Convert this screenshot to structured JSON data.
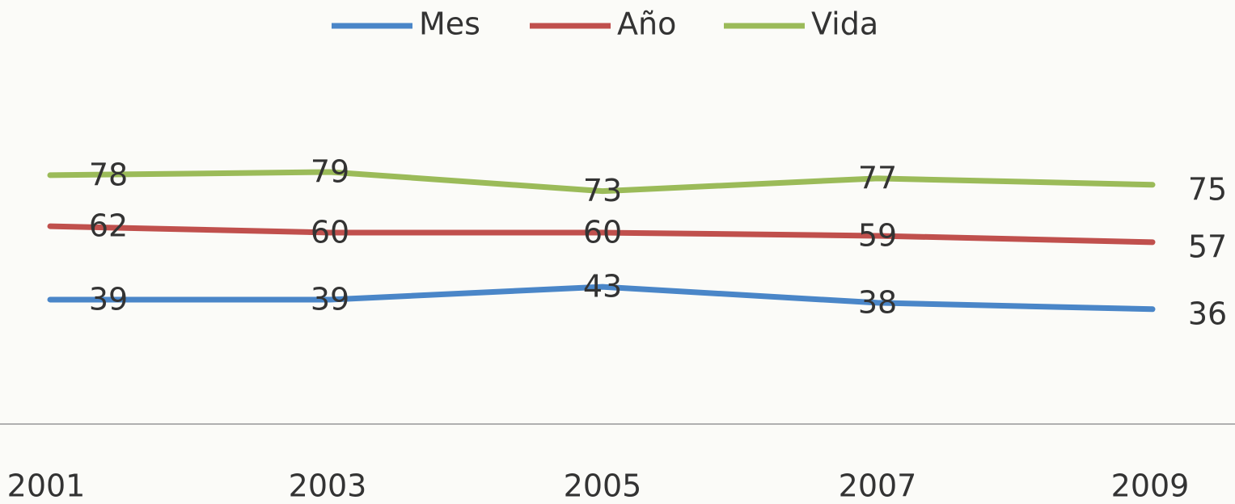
{
  "chart_data": {
    "type": "line",
    "categories": [
      "2001",
      "2003",
      "2005",
      "2007",
      "2009"
    ],
    "series": [
      {
        "name": "Mes",
        "color": "#4a86c8",
        "values": [
          39,
          39,
          43,
          38,
          36
        ]
      },
      {
        "name": "Año",
        "color": "#c0504d",
        "values": [
          62,
          60,
          60,
          59,
          57
        ]
      },
      {
        "name": "Vida",
        "color": "#9bbb59",
        "values": [
          78,
          79,
          73,
          77,
          75
        ]
      }
    ],
    "ylim": [
      0,
      100
    ],
    "legend": "top",
    "data_labels": true
  }
}
